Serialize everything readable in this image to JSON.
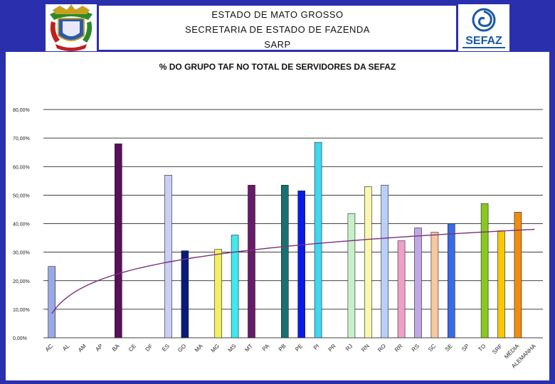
{
  "header": {
    "line1": "ESTADO DE MATO GROSSO",
    "line2": "SECRETARIA DE ESTADO DE FAZENDA",
    "line3": "SARP",
    "logo_right_text": "SEFAZ"
  },
  "colors": {
    "background": "#2a2fae",
    "trendline": "#7b2f7f",
    "gridline": "#000000"
  },
  "chart_data": {
    "type": "bar",
    "title": "% DO GRUPO TAF NO TOTAL DE SERVIDORES DA SEFAZ",
    "xlabel": "",
    "ylabel": "",
    "ylim": [
      0,
      80
    ],
    "yticks": [
      "0,00%",
      "10,00%",
      "20,00%",
      "30,00%",
      "40,00%",
      "50,00%",
      "60,00%",
      "70,00%",
      "80,00%"
    ],
    "grid": true,
    "categories": [
      "AC",
      "AL",
      "AM",
      "AP",
      "BA",
      "CE",
      "DF",
      "ES",
      "GO",
      "MA",
      "MG",
      "MS",
      "MT",
      "PA",
      "PB",
      "PE",
      "PI",
      "PR",
      "RJ",
      "RN",
      "RO",
      "RR",
      "RS",
      "SC",
      "SE",
      "SP",
      "TO",
      "SRF",
      "MÉDIA",
      "ALEMANHA"
    ],
    "values": [
      25,
      0,
      0,
      0,
      68,
      0,
      0,
      57,
      30.5,
      0,
      31,
      36,
      53.5,
      0,
      53.5,
      51.5,
      68.5,
      0,
      43.5,
      53,
      53.5,
      34,
      38.5,
      37,
      40,
      0,
      47,
      37.5,
      44,
      null
    ],
    "colors": [
      "#9aa8e8",
      "#000000",
      "#000000",
      "#000000",
      "#5a0f5a",
      "#000000",
      "#000000",
      "#c8d0f4",
      "#0a1a7a",
      "#000000",
      "#f0f060",
      "#40e8f0",
      "#6a1a6a",
      "#000000",
      "#1a7070",
      "#0a1ae8",
      "#40d8f0",
      "#000000",
      "#c8f0c8",
      "#f8f8b0",
      "#b8d0f8",
      "#f0a0c8",
      "#c0a8e8",
      "#f8c8a0",
      "#3a6ae8",
      "#000000",
      "#88c820",
      "#f8c800",
      "#f08c10",
      "#000000"
    ],
    "trendline": {
      "type": "logarithmic",
      "start": 8.5,
      "end": 38
    }
  }
}
